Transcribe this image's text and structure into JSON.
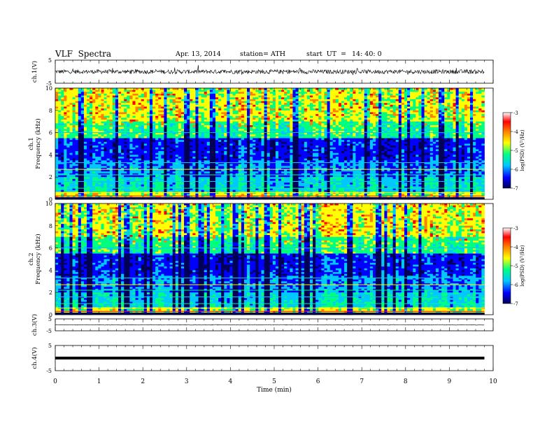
{
  "header": {
    "title": "VLF  Spectra",
    "date": "Apr. 13, 2014",
    "station": "station= ATH",
    "start_label": "start  UT  =",
    "start_time": "14: 40: 0"
  },
  "colors": {
    "colormap": [
      "#000055",
      "#0000ff",
      "#00c8ff",
      "#00ff80",
      "#ffff00",
      "#ff8000",
      "#ff0000",
      "#ffffff"
    ],
    "trace": "#000000"
  },
  "chart_data": [
    {
      "type": "line",
      "ylabel": "ch.1(V)",
      "yticks": [
        "5",
        "-5"
      ],
      "ylim": [
        -5,
        5
      ],
      "x_range_min": [
        0,
        9.8
      ],
      "mean_value": 0,
      "description_of_values": "noisy waveform near 0 V"
    },
    {
      "type": "heatmap",
      "ylabel_top": "ch.1",
      "ylabel": "Frequency  (kHz)",
      "yticks": [
        "10",
        "8",
        "6",
        "4",
        "2",
        "0"
      ],
      "ylim": [
        0,
        10
      ],
      "x_range_min": [
        0,
        9.8
      ],
      "colorbar": {
        "label": "log(PSD) (V²/Hz)",
        "ticks": [
          "-3",
          "-4",
          "-5",
          "-6",
          "-7"
        ],
        "range": [
          -7,
          -3
        ]
      }
    },
    {
      "type": "heatmap",
      "ylabel_top": "ch.2",
      "ylabel": "Frequency  (kHz)",
      "yticks": [
        "10",
        "8",
        "6",
        "4",
        "2",
        "0"
      ],
      "ylim": [
        0,
        10
      ],
      "x_range_min": [
        0,
        9.8
      ],
      "colorbar": {
        "label": "log(PSD) (V²/Hz)",
        "ticks": [
          "-3",
          "-4",
          "-5",
          "-6",
          "-7"
        ],
        "range": [
          -7,
          -3
        ]
      }
    },
    {
      "type": "line",
      "ylabel": "ch.3(V)",
      "yticks": [
        "5",
        "-5"
      ],
      "ylim": [
        -5,
        5
      ],
      "x_range_min": [
        0,
        9.8
      ],
      "mean_value": 0
    },
    {
      "type": "line",
      "ylabel": "ch.4(V)",
      "yticks": [
        "5",
        "-5"
      ],
      "ylim": [
        -5,
        5
      ],
      "x_range_min": [
        0,
        9.8
      ],
      "mean_value": 0
    }
  ],
  "xaxis": {
    "label": "Time  (min)",
    "ticks": [
      "0",
      "1",
      "2",
      "3",
      "4",
      "5",
      "6",
      "7",
      "8",
      "9",
      "10"
    ],
    "xlim": [
      0,
      10
    ]
  }
}
